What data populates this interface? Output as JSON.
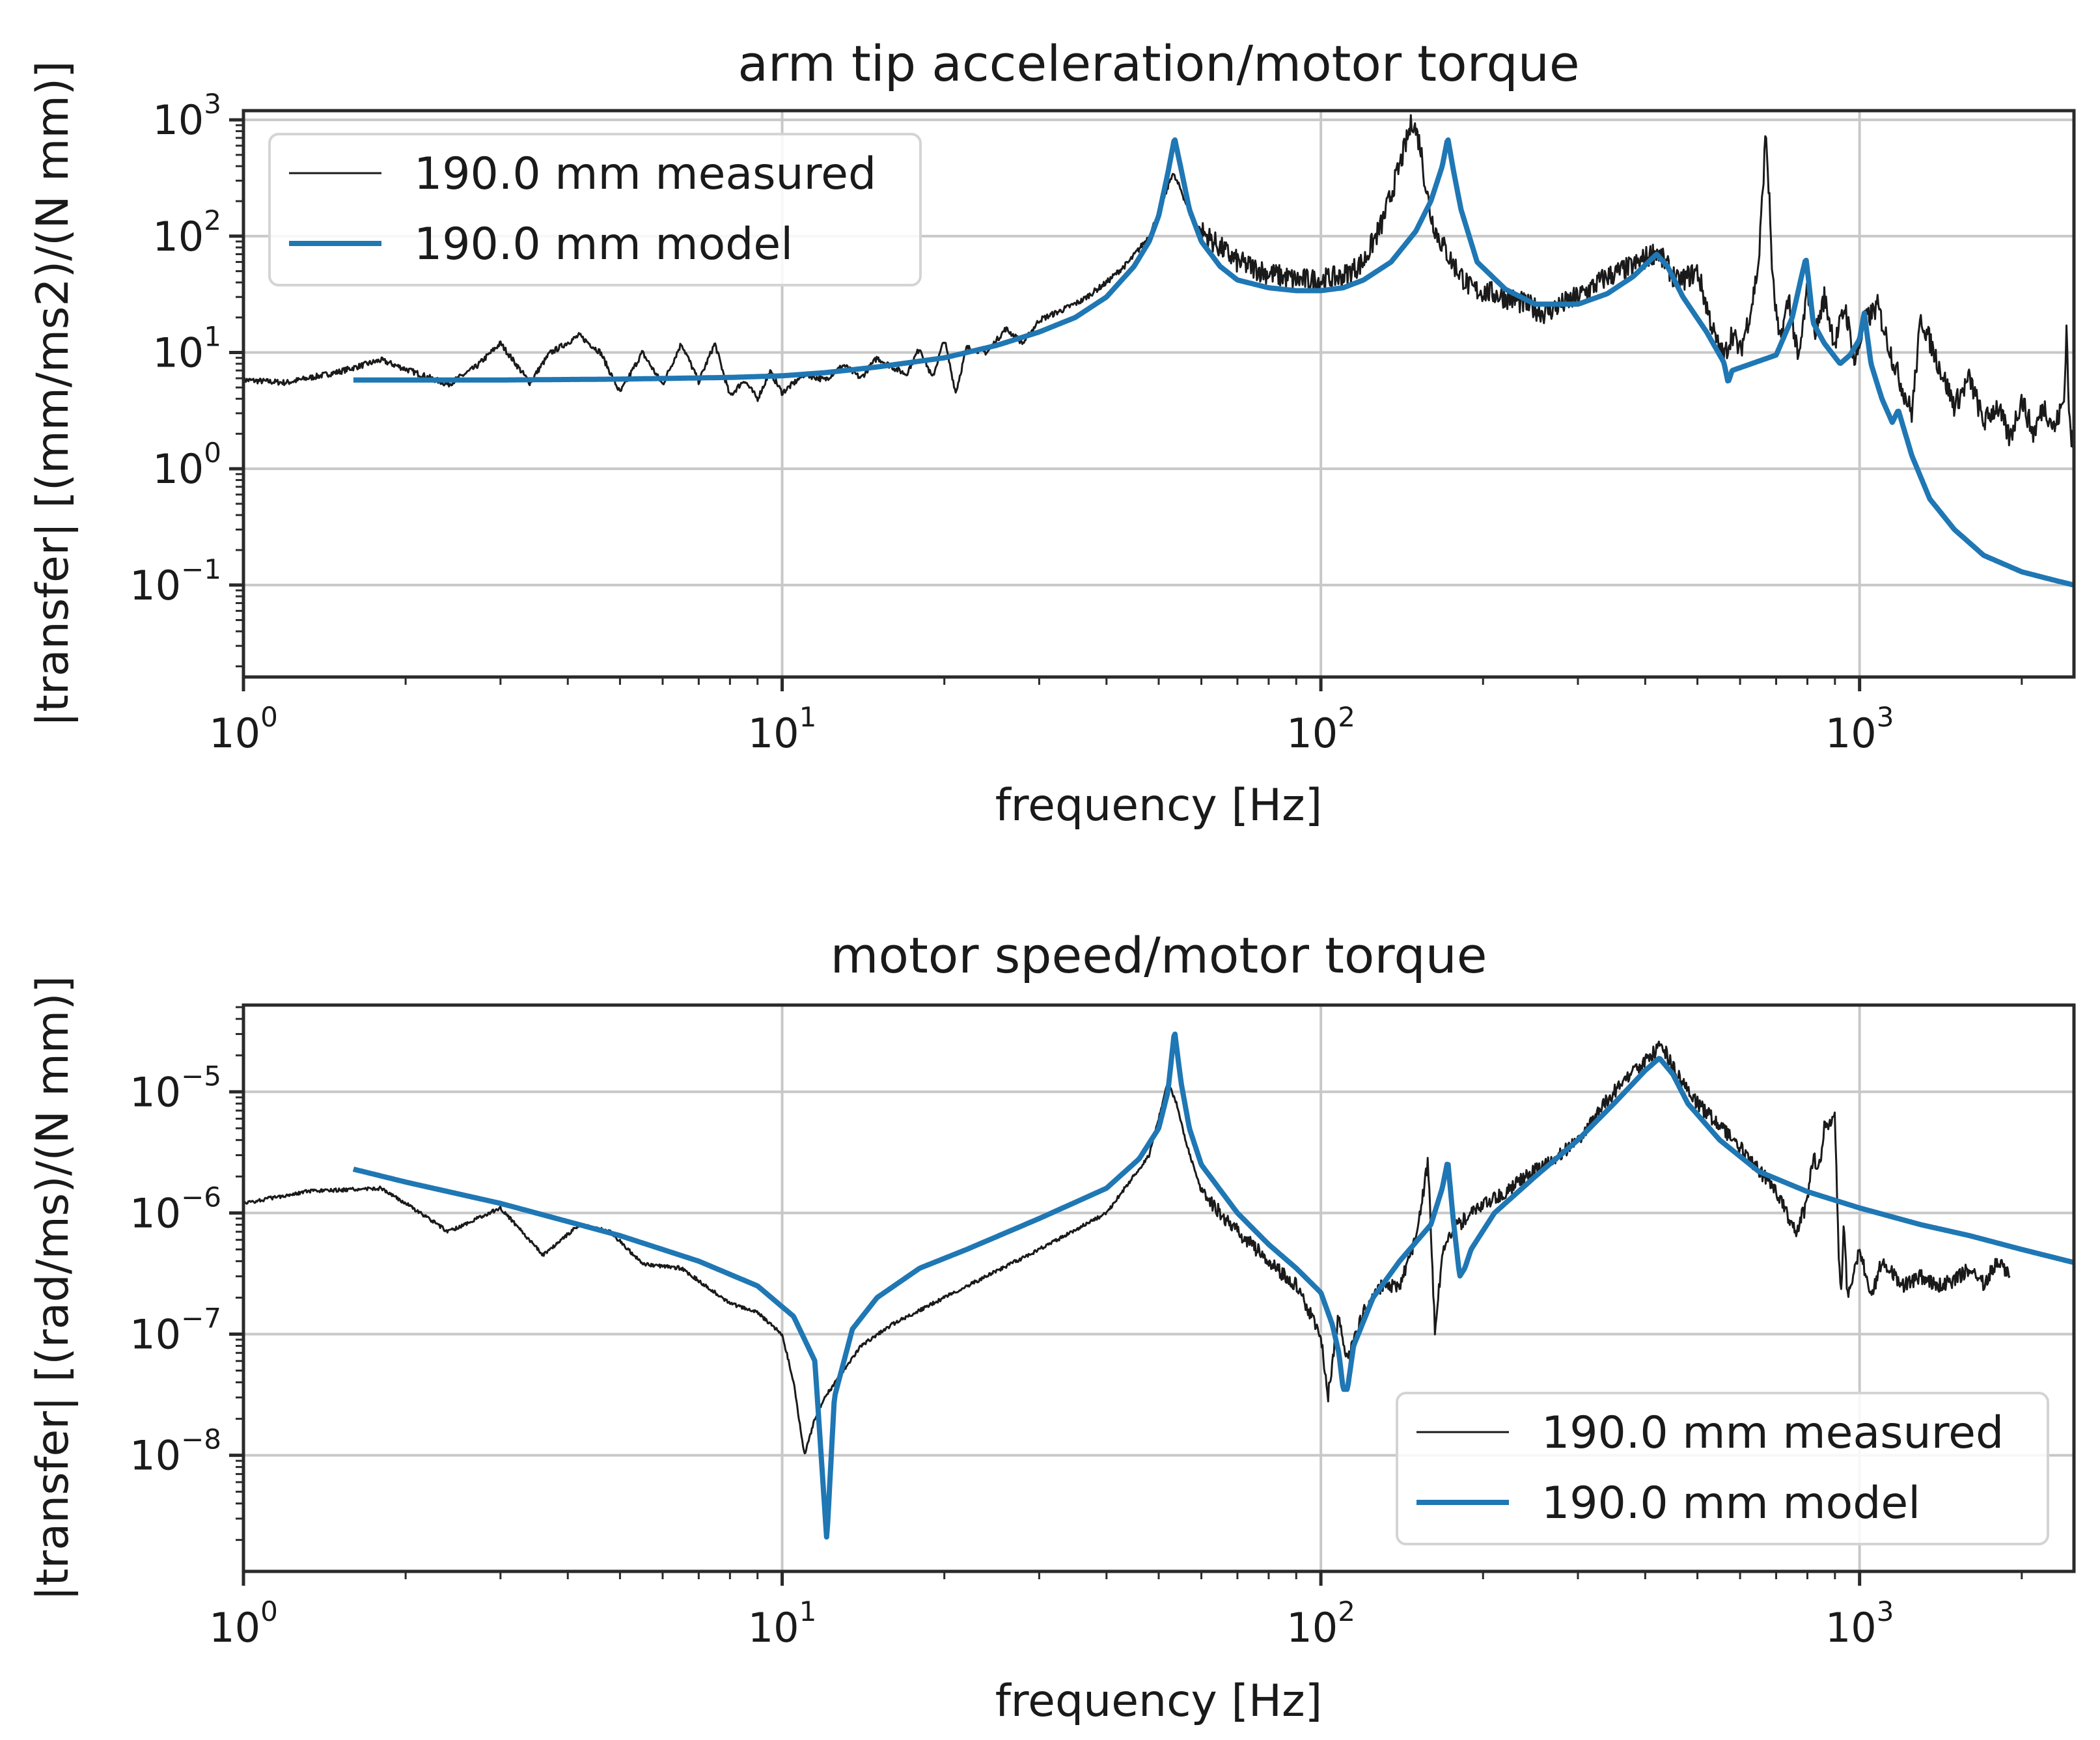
{
  "colors": {
    "measured": "#1a1a1a",
    "model": "#1f77b4"
  },
  "chart_data": [
    {
      "type": "line",
      "title": "arm tip acceleration/motor torque",
      "xlabel": "frequency [Hz]",
      "ylabel": "|transfer| [(mm/ms2)/(N mm)]",
      "xscale": "log",
      "yscale": "log",
      "xlim": [
        1,
        2500
      ],
      "ylim": [
        0.0162,
        1200
      ],
      "grid": true,
      "legend_loc": "upper left",
      "x_ticks": [
        {
          "value": 1,
          "base": "10",
          "exp": "0"
        },
        {
          "value": 10,
          "base": "10",
          "exp": "1"
        },
        {
          "value": 100,
          "base": "10",
          "exp": "2"
        },
        {
          "value": 1000,
          "base": "10",
          "exp": "3"
        }
      ],
      "y_ticks": [
        {
          "value": 0.1,
          "base": "10",
          "exp": "−1"
        },
        {
          "value": 1,
          "base": "10",
          "exp": "0"
        },
        {
          "value": 10,
          "base": "10",
          "exp": "1"
        },
        {
          "value": 100,
          "base": "10",
          "exp": "2"
        },
        {
          "value": 1000,
          "base": "10",
          "exp": "3"
        }
      ],
      "series": [
        {
          "name": "190.0 mm measured",
          "color": "#1a1a1a",
          "width": 3,
          "x": [
            1,
            1.2,
            1.5,
            1.8,
            2,
            2.4,
            2.7,
            3,
            3.4,
            3.7,
            4.2,
            4.6,
            5,
            5.5,
            6,
            6.5,
            7,
            7.5,
            8,
            8.5,
            9,
            9.5,
            10,
            11,
            12,
            13,
            14,
            15,
            16,
            17,
            18,
            19,
            20,
            21,
            22,
            24,
            26,
            28,
            30,
            33,
            36,
            40,
            44,
            48,
            51,
            53,
            55,
            57,
            60,
            65,
            70,
            80,
            90,
            100,
            110,
            120,
            130,
            140,
            148,
            153,
            156,
            160,
            165,
            175,
            190,
            210,
            230,
            260,
            300,
            340,
            380,
            420,
            460,
            500,
            540,
            560,
            580,
            600,
            630,
            650,
            670,
            680,
            690,
            710,
            740,
            770,
            800,
            830,
            860,
            900,
            940,
            980,
            1020,
            1080,
            1150,
            1200,
            1250,
            1300,
            1400,
            1500,
            1600,
            1700,
            1800,
            1900,
            2000,
            2100,
            2200,
            2300,
            2400,
            2420,
            2440,
            2460,
            2500
          ],
          "y": [
            5.8,
            5.5,
            6.8,
            8.6,
            7.2,
            5.3,
            7.5,
            12,
            5.5,
            9.8,
            14,
            10,
            4.5,
            10,
            5.3,
            12,
            5.6,
            12,
            4.2,
            5.8,
            4,
            6.8,
            4.5,
            6.5,
            5.8,
            7.8,
            6,
            9,
            7.5,
            6.5,
            11,
            6,
            13,
            4.5,
            11,
            10,
            16,
            12,
            19,
            23,
            28,
            40,
            60,
            100,
            200,
            350,
            250,
            160,
            110,
            80,
            60,
            48,
            42,
            42,
            45,
            60,
            130,
            400,
            1000,
            600,
            300,
            150,
            100,
            60,
            35,
            32,
            28,
            22,
            30,
            45,
            55,
            75,
            40,
            50,
            13,
            9,
            15,
            10,
            25,
            60,
            800,
            200,
            40,
            12,
            30,
            8,
            35,
            15,
            30,
            12,
            25,
            8,
            18,
            25,
            9,
            5,
            3,
            20,
            8,
            3.5,
            6,
            2.5,
            3.5,
            1.8,
            4,
            2,
            3.5,
            2.2,
            4,
            18,
            5,
            2,
            1.5
          ],
          "jitter": 0.1
        },
        {
          "name": "190.0 mm model",
          "color": "#1f77b4",
          "width": 8,
          "x": [
            1.6,
            2,
            3,
            5,
            8,
            10,
            12,
            15,
            20,
            25,
            30,
            35,
            40,
            45,
            48,
            50,
            52,
            53.5,
            55,
            57,
            60,
            65,
            70,
            80,
            90,
            100,
            110,
            120,
            135,
            150,
            160,
            168,
            172,
            176,
            182,
            195,
            220,
            250,
            300,
            340,
            380,
            420,
            440,
            470,
            520,
            560,
            570,
            580,
            620,
            700,
            750,
            780,
            795,
            805,
            820,
            860,
            920,
            960,
            1000,
            1020,
            1050,
            1100,
            1150,
            1180,
            1250,
            1350,
            1500,
            1700,
            2000,
            2300,
            2500
          ],
          "y": [
            5.8,
            5.8,
            5.8,
            5.9,
            6.1,
            6.3,
            6.7,
            7.5,
            9,
            11.5,
            15,
            20,
            30,
            55,
            90,
            150,
            350,
            700,
            380,
            170,
            90,
            55,
            42,
            36,
            34,
            34,
            36,
            42,
            60,
            110,
            200,
            400,
            700,
            380,
            170,
            60,
            35,
            26,
            26,
            32,
            45,
            70,
            55,
            30,
            15,
            8.2,
            5.5,
            7,
            7.8,
            9.5,
            20,
            45,
            65,
            40,
            18,
            12,
            8,
            9.5,
            13,
            22,
            8,
            4,
            2.5,
            3.2,
            1.3,
            0.55,
            0.3,
            0.18,
            0.13,
            0.11,
            0.1
          ]
        }
      ]
    },
    {
      "type": "line",
      "title": "motor speed/motor torque",
      "xlabel": "frequency [Hz]",
      "ylabel": "|transfer| [(rad/ms)/(N mm)]",
      "xscale": "log",
      "yscale": "log",
      "xlim": [
        1,
        2500
      ],
      "ylim": [
        1.1e-09,
        5.2e-05
      ],
      "grid": true,
      "legend_loc": "lower right",
      "x_ticks": [
        {
          "value": 1,
          "base": "10",
          "exp": "0"
        },
        {
          "value": 10,
          "base": "10",
          "exp": "1"
        },
        {
          "value": 100,
          "base": "10",
          "exp": "2"
        },
        {
          "value": 1000,
          "base": "10",
          "exp": "3"
        }
      ],
      "y_ticks": [
        {
          "value": 1e-08,
          "base": "10",
          "exp": "−8"
        },
        {
          "value": 1e-07,
          "base": "10",
          "exp": "−7"
        },
        {
          "value": 1e-06,
          "base": "10",
          "exp": "−6"
        },
        {
          "value": 1e-05,
          "base": "10",
          "exp": "−5"
        }
      ],
      "series": [
        {
          "name": "190.0 mm measured",
          "color": "#1a1a1a",
          "width": 3,
          "x": [
            1,
            1.3,
            1.8,
            2,
            2.4,
            3,
            3.6,
            4.2,
            4.8,
            5.5,
            6.5,
            8,
            9,
            10,
            10.5,
            11,
            11.5,
            12,
            13,
            14,
            16,
            20,
            30,
            40,
            48,
            52,
            54,
            56,
            60,
            70,
            80,
            90,
            100,
            103,
            108,
            112,
            120,
            130,
            140,
            150,
            158,
            163,
            168,
            175,
            190,
            220,
            260,
            300,
            350,
            400,
            430,
            450,
            500,
            600,
            700,
            760,
            800,
            820,
            840,
            860,
            900,
            915,
            925,
            935,
            950,
            1000,
            1050,
            1100,
            1200,
            1300,
            1400,
            1500,
            1600,
            1700,
            1800,
            1900
          ],
          "y": [
            1.2e-06,
            1.5e-06,
            1.6e-06,
            1.2e-06,
            7e-07,
            1.1e-06,
            4.5e-07,
            8e-07,
            7e-07,
            3.8e-07,
            3.5e-07,
            1.8e-07,
            1.5e-07,
            1e-07,
            4e-08,
            1e-08,
            2e-08,
            3e-08,
            5e-08,
            8e-08,
            1.2e-07,
            2e-07,
            5e-07,
            1e-06,
            3e-06,
            1.2e-05,
            8e-06,
            4e-06,
            1.5e-06,
            7e-07,
            4e-07,
            2.5e-07,
            1e-07,
            3e-08,
            1.5e-07,
            6e-08,
            1.5e-07,
            2.5e-07,
            2.5e-07,
            6e-07,
            2.6e-06,
            1e-07,
            5e-07,
            7e-07,
            1e-06,
            1.5e-06,
            2.5e-06,
            4e-06,
            1e-05,
            1.8e-05,
            2.4e-05,
            1.6e-05,
            8e-06,
            3.5e-06,
            1.5e-06,
            7e-07,
            1.2e-06,
            3e-06,
            2.2e-06,
            5e-06,
            6e-06,
            4e-07,
            2.5e-07,
            8e-07,
            2e-07,
            5e-07,
            2e-07,
            4e-07,
            2.5e-07,
            3e-07,
            2.5e-07,
            2.8e-07,
            3.5e-07,
            2.6e-07,
            4e-07,
            3e-07
          ],
          "jitter": 0.06
        },
        {
          "name": "190.0 mm model",
          "color": "#1f77b4",
          "width": 8,
          "x": [
            1.6,
            2,
            3,
            5,
            7,
            9,
            10.5,
            11.5,
            12.1,
            12.5,
            13.5,
            15,
            18,
            22,
            30,
            40,
            46,
            50,
            52,
            53.5,
            55,
            57,
            60,
            70,
            80,
            90,
            100,
            105,
            108,
            110,
            112,
            115,
            125,
            140,
            160,
            168,
            172,
            176,
            181,
            185,
            190,
            210,
            250,
            300,
            350,
            400,
            425,
            450,
            480,
            550,
            650,
            800,
            1000,
            1300,
            1600,
            2000,
            2500
          ],
          "y": [
            2.3e-06,
            1.8e-06,
            1.2e-06,
            6.5e-07,
            4e-07,
            2.5e-07,
            1.4e-07,
            6e-08,
            2e-09,
            3e-08,
            1.1e-07,
            2e-07,
            3.5e-07,
            5e-07,
            9e-07,
            1.6e-06,
            2.8e-06,
            5e-06,
            1e-05,
            3.2e-05,
            1.2e-05,
            5e-06,
            2.5e-06,
            1e-06,
            5.5e-07,
            3.5e-07,
            2.2e-07,
            1.2e-07,
            7e-08,
            3.5e-08,
            3.5e-08,
            8e-08,
            2e-07,
            4e-07,
            8e-07,
            1.6e-06,
            2.7e-06,
            9e-07,
            3e-07,
            3.5e-07,
            5e-07,
            1e-06,
            2e-06,
            4e-06,
            8e-06,
            1.5e-05,
            1.9e-05,
            1.4e-05,
            8e-06,
            4e-06,
            2.2e-06,
            1.5e-06,
            1.1e-06,
            8e-07,
            6.5e-07,
            5e-07,
            3.9e-07
          ]
        }
      ]
    }
  ]
}
